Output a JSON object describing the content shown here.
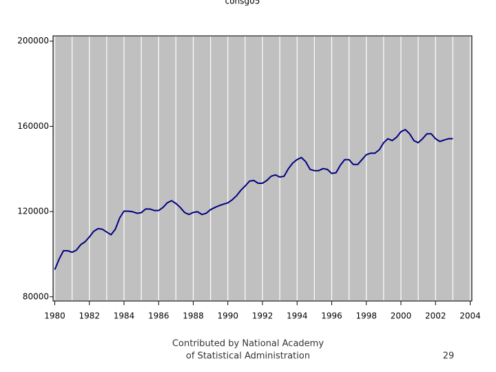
{
  "chart_data": {
    "type": "line",
    "title": "consg05",
    "x": [
      1980,
      1980.25,
      1980.5,
      1980.75,
      1981,
      1981.25,
      1981.5,
      1981.75,
      1982,
      1982.25,
      1982.5,
      1982.75,
      1983,
      1983.25,
      1983.5,
      1983.75,
      1984,
      1984.25,
      1984.5,
      1984.75,
      1985,
      1985.25,
      1985.5,
      1985.75,
      1986,
      1986.25,
      1986.5,
      1986.75,
      1987,
      1987.25,
      1987.5,
      1987.75,
      1988,
      1988.25,
      1988.5,
      1988.75,
      1989,
      1989.25,
      1989.5,
      1989.75,
      1990,
      1990.25,
      1990.5,
      1990.75,
      1991,
      1991.25,
      1991.5,
      1991.75,
      1992,
      1992.25,
      1992.5,
      1992.75,
      1993,
      1993.25,
      1993.5,
      1993.75,
      1994,
      1994.25,
      1994.5,
      1994.75,
      1995,
      1995.25,
      1995.5,
      1995.75,
      1996,
      1996.25,
      1996.5,
      1996.75,
      1997,
      1997.25,
      1997.5,
      1997.75,
      1998,
      1998.25,
      1998.5,
      1998.75,
      1999,
      1999.25,
      1999.5,
      1999.75,
      2000,
      2000.25,
      2000.5,
      2000.75,
      2001,
      2001.25,
      2001.5,
      2001.75,
      2002,
      2002.25,
      2002.5,
      2002.75,
      2003
    ],
    "series": [
      {
        "name": "consg05",
        "color": "#000080",
        "values": [
          92750,
          97650,
          101600,
          101600,
          100900,
          101900,
          104500,
          105800,
          108100,
          110700,
          112000,
          111700,
          110400,
          109100,
          111700,
          117000,
          120200,
          120200,
          119900,
          119200,
          119500,
          121200,
          121200,
          120500,
          120500,
          121900,
          124100,
          125100,
          123800,
          121900,
          119600,
          118600,
          119600,
          119900,
          118600,
          119200,
          120900,
          121900,
          122800,
          123500,
          124100,
          125500,
          127400,
          130000,
          132000,
          134300,
          134600,
          133300,
          133300,
          134600,
          136600,
          137200,
          136200,
          136600,
          140200,
          142800,
          144400,
          145400,
          143400,
          139800,
          139200,
          139200,
          140200,
          139800,
          137900,
          138200,
          141800,
          144400,
          144400,
          142100,
          142100,
          144400,
          146700,
          147400,
          147400,
          149000,
          152300,
          154200,
          153300,
          154900,
          157500,
          158500,
          156500,
          153300,
          152300,
          154200,
          156500,
          156500,
          154200,
          152900,
          153600,
          154200,
          154200
        ]
      }
    ],
    "xlim": [
      1979.9,
      2004.1
    ],
    "xticks": [
      1980,
      1982,
      1984,
      1986,
      1988,
      1990,
      1992,
      1994,
      1996,
      1998,
      2000,
      2002,
      2004
    ],
    "ylim": [
      78000,
      202500
    ],
    "yticks": [
      80000,
      120000,
      160000,
      200000
    ],
    "grid": true,
    "footer": {
      "credit_line1": "Contributed by National Academy",
      "credit_line2": "of Statistical Administration",
      "page_number": "29"
    }
  }
}
